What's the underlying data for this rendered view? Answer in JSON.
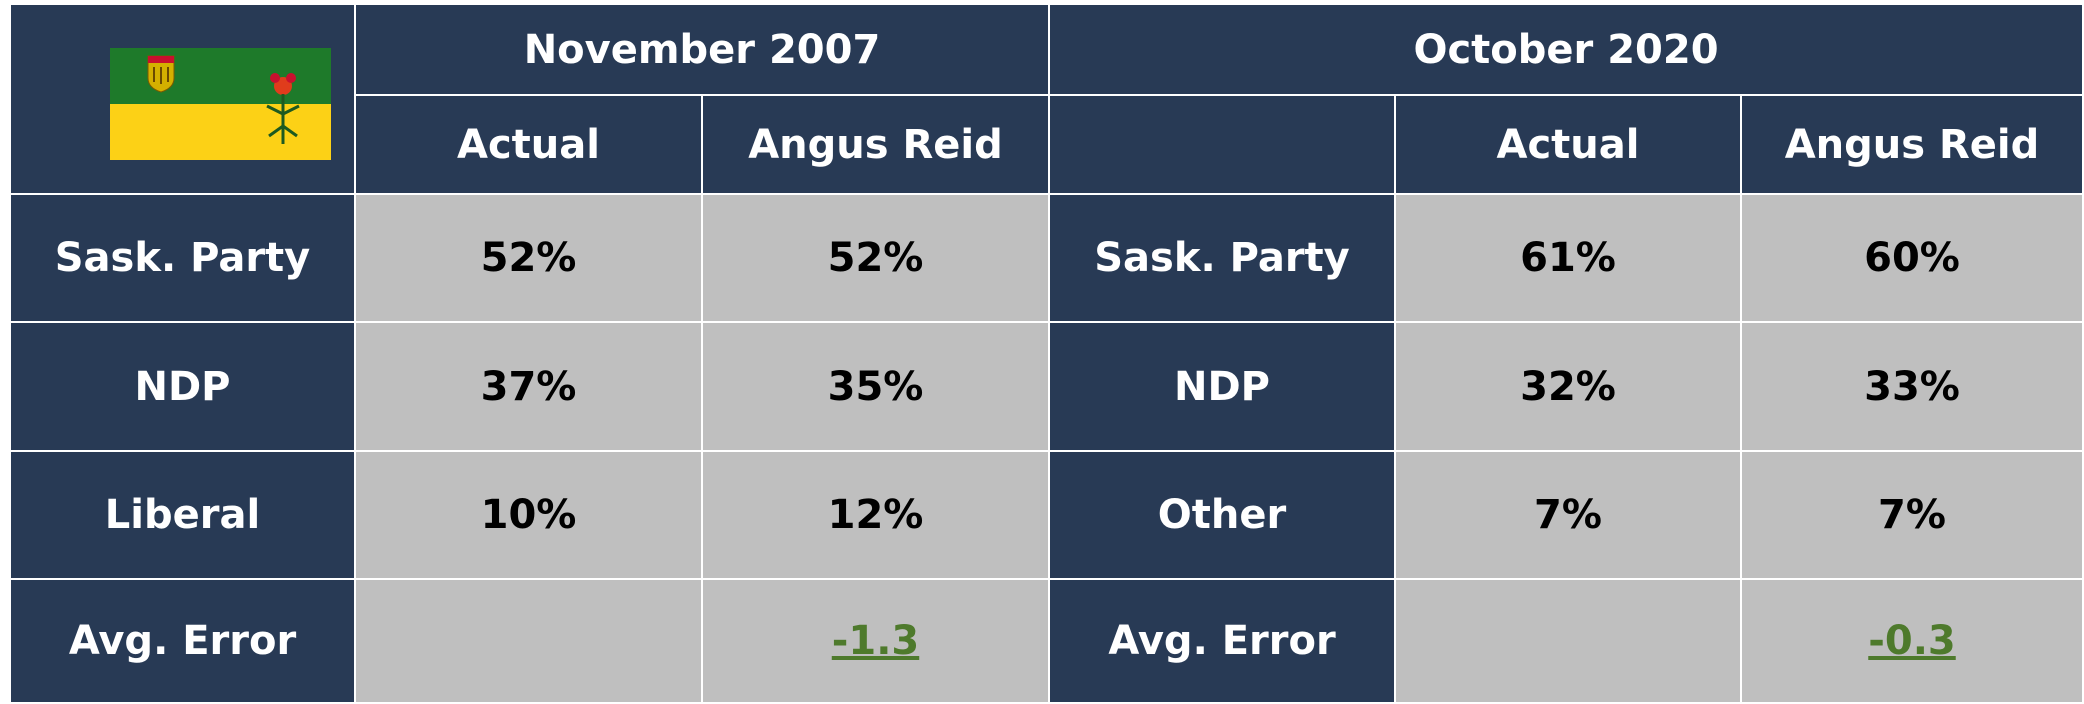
{
  "table": {
    "header": {
      "periods": [
        "November 2007",
        "October 2020"
      ],
      "columns": [
        "Actual",
        "Angus Reid",
        "Actual",
        "Angus Reid"
      ]
    },
    "rows": [
      [
        "Sask. Party",
        "52%",
        "52%",
        "Sask. Party",
        "61%",
        "60%"
      ],
      [
        "NDP",
        "37%",
        "35%",
        "NDP",
        "32%",
        "33%"
      ],
      [
        "Liberal",
        "10%",
        "12%",
        "Other",
        "7%",
        "7%"
      ],
      [
        "Avg. Error",
        null,
        "-1.3",
        "Avg. Error",
        null,
        "-0.3"
      ]
    ]
  }
}
